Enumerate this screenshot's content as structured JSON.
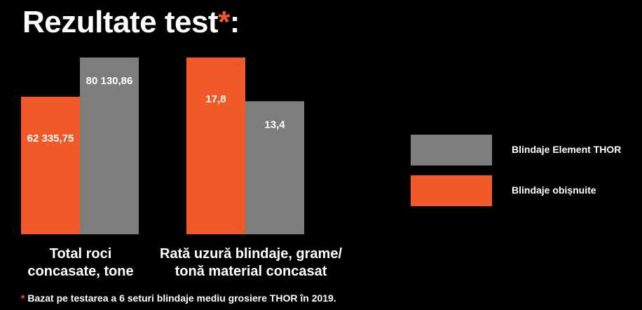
{
  "title": {
    "text": "Rezultate test",
    "asterisk": "*",
    "suffix": ":"
  },
  "colors": {
    "background": "#000000",
    "orange": "#f05a28",
    "gray": "#7d7d7d",
    "text": "#ffffff"
  },
  "chart_data": {
    "type": "bar",
    "categories": [
      {
        "line1": "Total roci",
        "line2": "concasate, tone"
      },
      {
        "line1": "Rată uzură blindaje, grame/",
        "line2": "tonă material concasat"
      }
    ],
    "series": [
      {
        "name": "Blindaje obișnuite",
        "color": "#f05a28",
        "values": [
          62335.75,
          17.8
        ],
        "labels": [
          "62 335,75",
          "17,8"
        ]
      },
      {
        "name": "Blindaje Element THOR",
        "color": "#7d7d7d",
        "values": [
          80130.86,
          13.4
        ],
        "labels": [
          "80 130,86",
          "13,4"
        ]
      }
    ],
    "group_max": [
      80130.86,
      17.8
    ],
    "legend": [
      {
        "label": "Blindaje Element THOR",
        "color": "#7d7d7d"
      },
      {
        "label": "Blindaje obișnuite",
        "color": "#f05a28"
      }
    ],
    "legend_position": "right",
    "grid": false
  },
  "footnote": {
    "asterisk": "*",
    "text": "Bazat pe testarea a 6 seturi blindaje mediu grosiere THOR în 2019."
  }
}
